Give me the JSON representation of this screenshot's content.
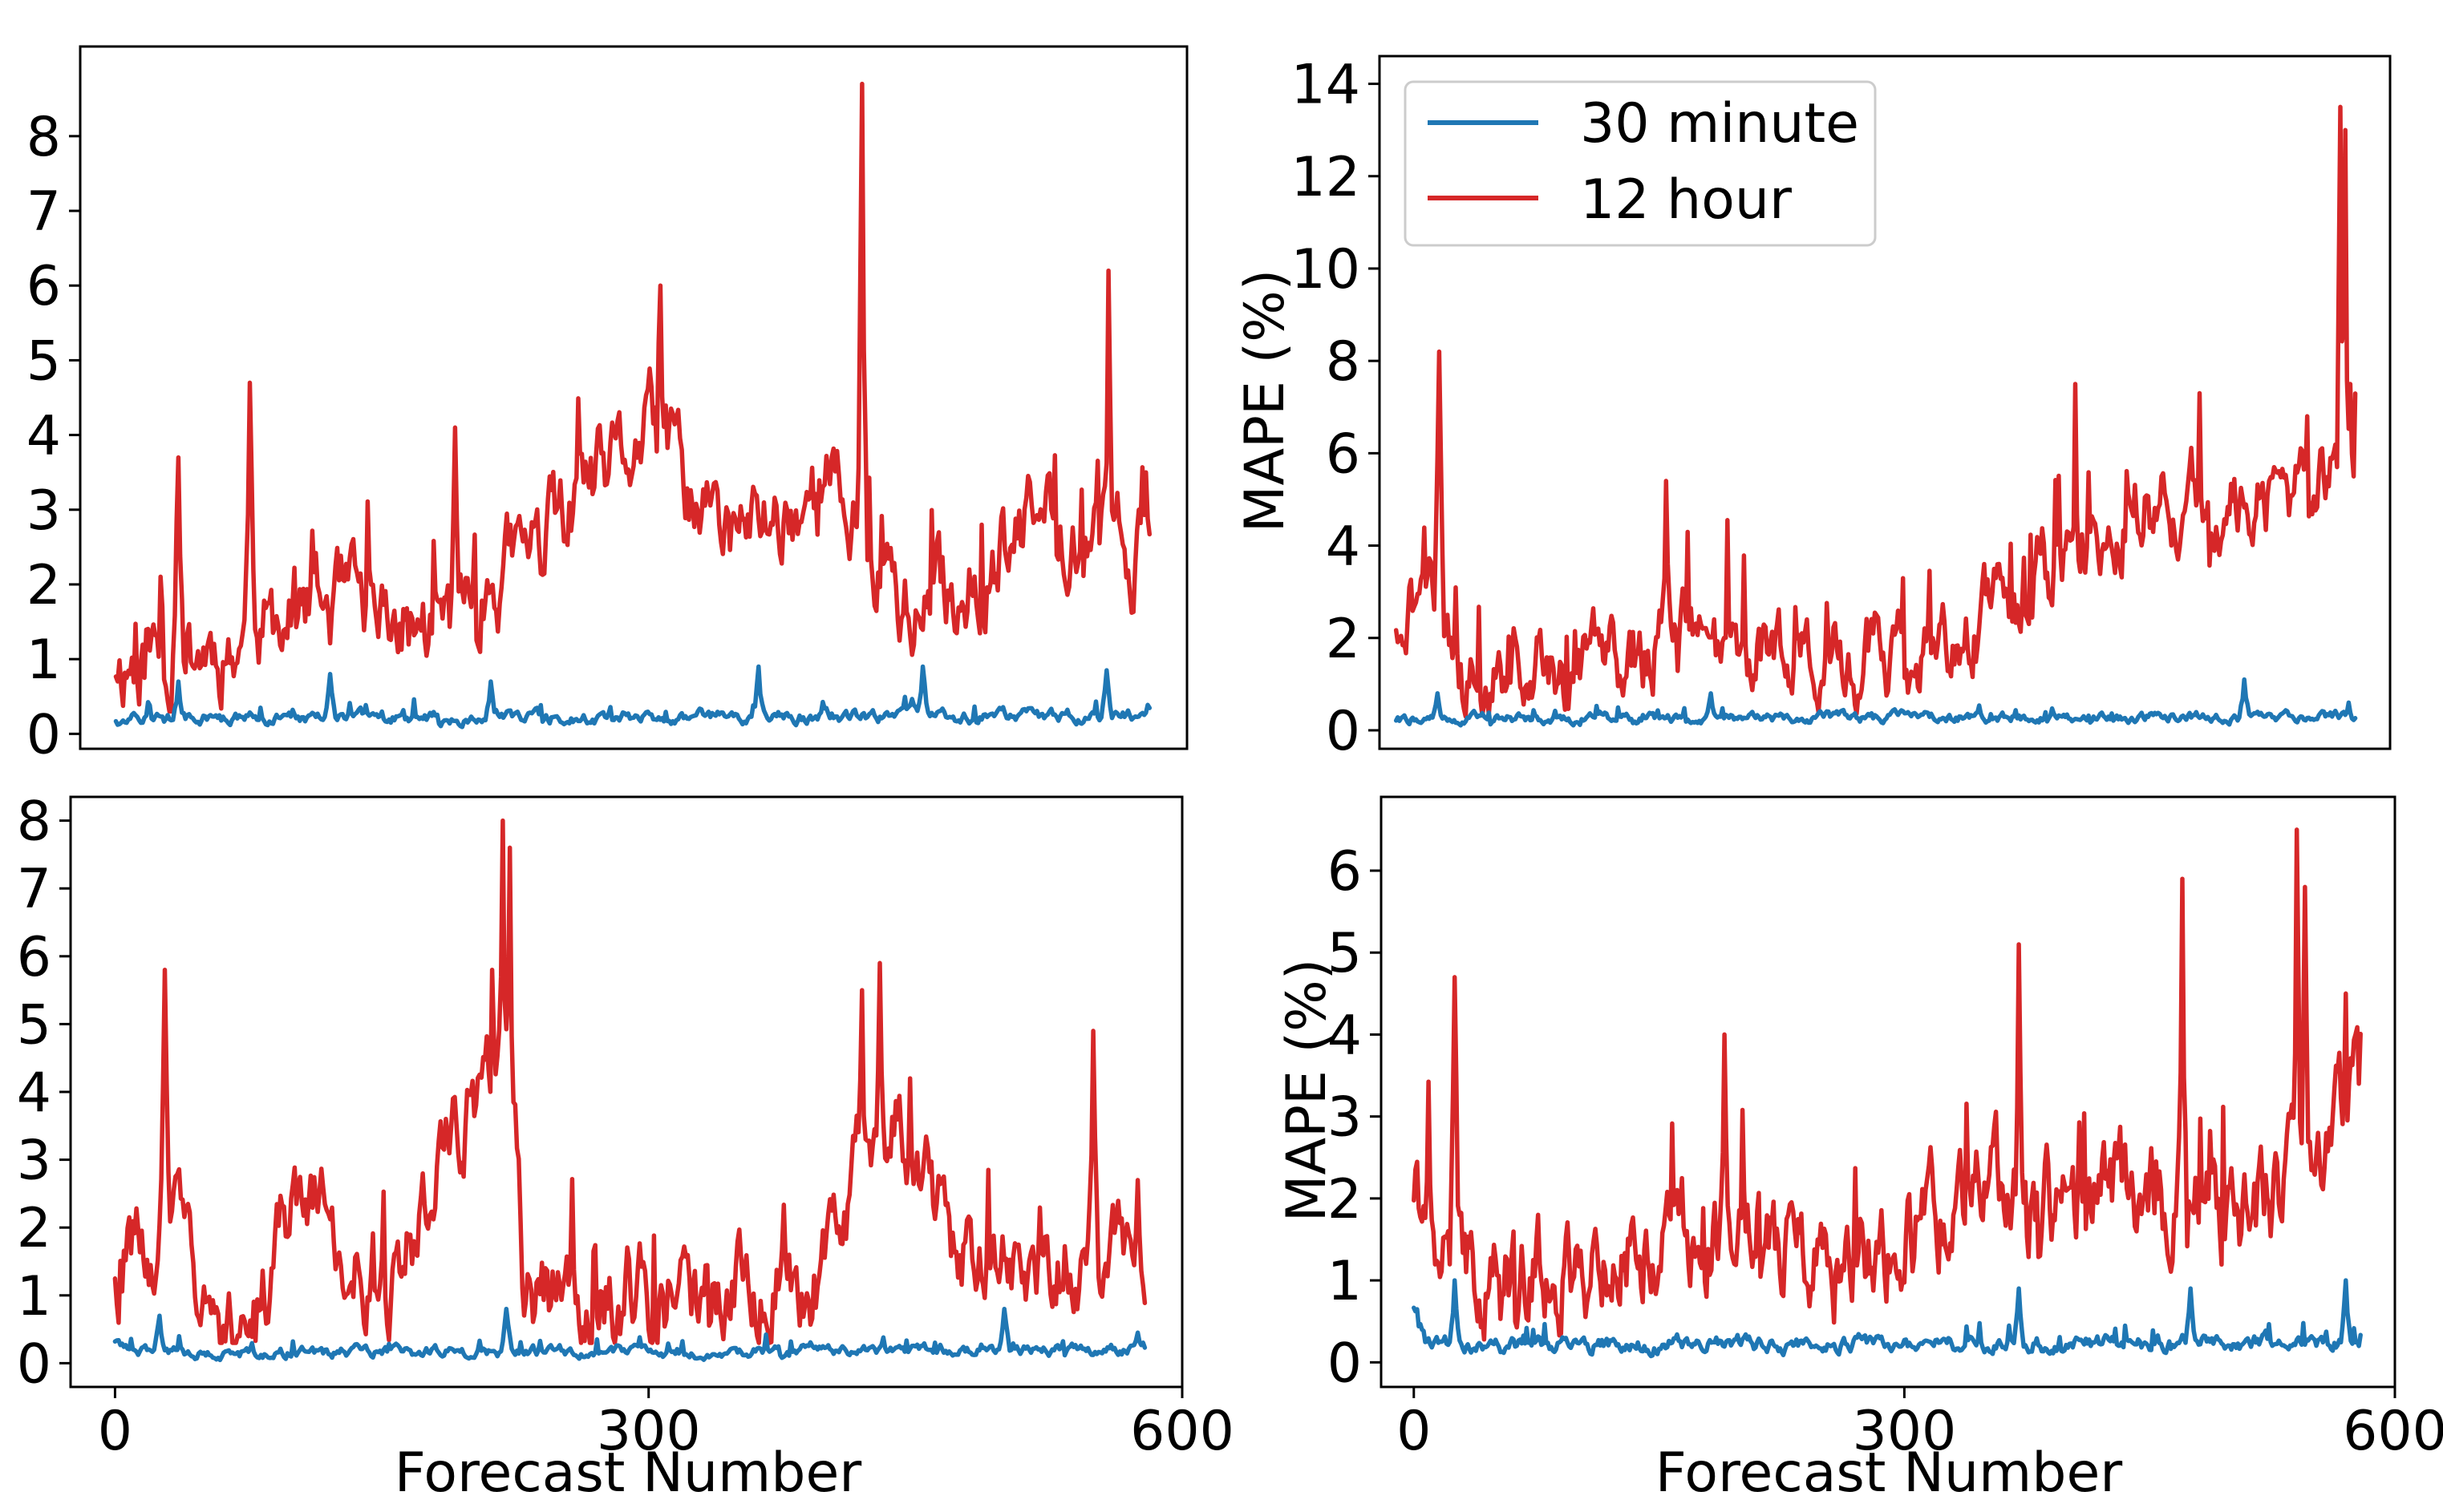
{
  "figure": {
    "colors": {
      "30 minute": "#1f77b4",
      "12 hour": "#d62728"
    },
    "legend": {
      "placement": "upper-left",
      "in_panel": 1,
      "entries": [
        "30 minute",
        "12 hour"
      ]
    }
  },
  "chart_data": [
    {
      "type": "line",
      "panel": "top-left",
      "title": "",
      "xlabel": "",
      "ylabel": "",
      "xlim": [
        -20,
        600
      ],
      "ylim": [
        -0.2,
        9.2
      ],
      "xticks": [],
      "yticks": [
        0,
        1,
        2,
        3,
        4,
        5,
        6,
        7,
        8
      ],
      "ytick_labels": [
        "0",
        "1",
        "2",
        "3",
        "4",
        "5",
        "6",
        "7",
        "8"
      ],
      "series": [
        {
          "name": "12 hour",
          "color": "#d62728",
          "n": 580,
          "seed": 11,
          "base": 0.9,
          "vol": 0.9,
          "trend": [
            [
              0,
              1.0
            ],
            [
              60,
              1.2
            ],
            [
              120,
              1.7
            ],
            [
              180,
              1.4
            ],
            [
              230,
              2.4
            ],
            [
              300,
              4.0
            ],
            [
              340,
              2.6
            ],
            [
              400,
              3.3
            ],
            [
              450,
              1.5
            ],
            [
              520,
              2.9
            ],
            [
              580,
              2.5
            ]
          ],
          "peaks": [
            [
              35,
              3.7
            ],
            [
              75,
              4.7
            ],
            [
              190,
              4.1
            ],
            [
              305,
              6.0
            ],
            [
              418,
              8.7
            ],
            [
              556,
              6.2
            ],
            [
              573,
              3.0
            ],
            [
              577,
              3.5
            ]
          ],
          "min": 0.3
        },
        {
          "name": "30 minute",
          "color": "#1f77b4",
          "n": 580,
          "seed": 12,
          "base": 0.22,
          "vol": 0.12,
          "trend": [
            [
              0,
              0.2
            ],
            [
              580,
              0.25
            ]
          ],
          "peaks": [
            [
              35,
              0.7
            ],
            [
              120,
              0.8
            ],
            [
              210,
              0.7
            ],
            [
              360,
              0.9
            ],
            [
              452,
              0.9
            ],
            [
              555,
              0.85
            ]
          ],
          "min": 0.02
        }
      ]
    },
    {
      "type": "line",
      "panel": "top-right",
      "title": "",
      "xlabel": "",
      "ylabel": "MAPE (%)",
      "xlim": [
        -10,
        600
      ],
      "ylim": [
        -0.4,
        14.6
      ],
      "xticks": [],
      "yticks": [
        0,
        2,
        4,
        6,
        8,
        10,
        12,
        14
      ],
      "ytick_labels": [
        "0",
        "2",
        "4",
        "6",
        "8",
        "10",
        "12",
        "14"
      ],
      "series": [
        {
          "name": "12 hour",
          "color": "#d62728",
          "n": 580,
          "seed": 21,
          "base": 1.5,
          "vol": 1.3,
          "trend": [
            [
              0,
              2.5
            ],
            [
              25,
              3.5
            ],
            [
              40,
              1.2
            ],
            [
              120,
              1.6
            ],
            [
              180,
              2.0
            ],
            [
              260,
              1.6
            ],
            [
              330,
              1.5
            ],
            [
              400,
              3.8
            ],
            [
              460,
              5.0
            ],
            [
              520,
              4.8
            ],
            [
              560,
              5.2
            ],
            [
              580,
              6.5
            ]
          ],
          "peaks": [
            [
              26,
              8.2
            ],
            [
              163,
              5.4
            ],
            [
              410,
              7.5
            ],
            [
              485,
              7.3
            ],
            [
              550,
              6.8
            ],
            [
              570,
              13.5
            ],
            [
              573,
              13.0
            ],
            [
              576,
              7.5
            ],
            [
              578,
              5.5
            ]
          ],
          "min": 0.3
        },
        {
          "name": "30 minute",
          "color": "#1f77b4",
          "n": 580,
          "seed": 22,
          "base": 0.25,
          "vol": 0.15,
          "trend": [
            [
              0,
              0.25
            ],
            [
              580,
              0.3
            ]
          ],
          "peaks": [
            [
              25,
              0.8
            ],
            [
              190,
              0.8
            ],
            [
              512,
              1.1
            ],
            [
              575,
              0.6
            ]
          ],
          "min": 0.02
        }
      ]
    },
    {
      "type": "line",
      "panel": "bottom-left",
      "title": "",
      "xlabel": "Forecast Number",
      "ylabel": "",
      "xlim": [
        -25,
        600
      ],
      "ylim": [
        -0.35,
        8.35
      ],
      "xticks": [
        0,
        300,
        600
      ],
      "xtick_labels": [
        "0",
        "300",
        "600"
      ],
      "yticks": [
        0,
        1,
        2,
        3,
        4,
        5,
        6,
        7,
        8
      ],
      "ytick_labels": [
        "0",
        "1",
        "2",
        "3",
        "4",
        "5",
        "6",
        "7",
        "8"
      ],
      "series": [
        {
          "name": "12 hour",
          "color": "#d62728",
          "n": 580,
          "seed": 31,
          "base": 1.0,
          "vol": 1.0,
          "trend": [
            [
              0,
              1.5
            ],
            [
              20,
              1.6
            ],
            [
              30,
              2.5
            ],
            [
              45,
              0.8
            ],
            [
              80,
              1.0
            ],
            [
              110,
              2.8
            ],
            [
              130,
              1.6
            ],
            [
              160,
              1.2
            ],
            [
              180,
              3.0
            ],
            [
              210,
              4.0
            ],
            [
              222,
              4.5
            ],
            [
              230,
              1.0
            ],
            [
              300,
              1.0
            ],
            [
              400,
              1.3
            ],
            [
              420,
              3.2
            ],
            [
              440,
              3.6
            ],
            [
              470,
              1.8
            ],
            [
              580,
              1.5
            ]
          ],
          "peaks": [
            [
              28,
              5.8
            ],
            [
              212,
              5.8
            ],
            [
              218,
              8.0
            ],
            [
              222,
              7.6
            ],
            [
              420,
              5.5
            ],
            [
              430,
              5.9
            ],
            [
              550,
              4.9
            ],
            [
              575,
              2.7
            ]
          ],
          "min": 0.3
        },
        {
          "name": "30 minute",
          "color": "#1f77b4",
          "n": 580,
          "seed": 32,
          "base": 0.2,
          "vol": 0.12,
          "trend": [
            [
              0,
              0.35
            ],
            [
              10,
              0.15
            ],
            [
              580,
              0.2
            ]
          ],
          "peaks": [
            [
              25,
              0.7
            ],
            [
              220,
              0.8
            ],
            [
              500,
              0.8
            ],
            [
              575,
              0.45
            ]
          ],
          "min": 0.02
        }
      ]
    },
    {
      "type": "line",
      "panel": "bottom-right",
      "title": "",
      "xlabel": "Forecast Number",
      "ylabel": "MAPE (%)",
      "xlim": [
        -20,
        600
      ],
      "ylim": [
        -0.3,
        6.9
      ],
      "xticks": [
        0,
        300,
        600
      ],
      "xtick_labels": [
        "0",
        "300",
        "600"
      ],
      "yticks": [
        0,
        1,
        2,
        3,
        4,
        5,
        6
      ],
      "ytick_labels": [
        "0",
        "1",
        "2",
        "3",
        "4",
        "5",
        "6"
      ],
      "series": [
        {
          "name": "12 hour",
          "color": "#d62728",
          "n": 580,
          "seed": 41,
          "base": 1.4,
          "vol": 0.9,
          "trend": [
            [
              0,
              2.2
            ],
            [
              20,
              1.4
            ],
            [
              60,
              1.0
            ],
            [
              120,
              1.3
            ],
            [
              200,
              1.9
            ],
            [
              250,
              1.0
            ],
            [
              320,
              1.8
            ],
            [
              380,
              2.0
            ],
            [
              450,
              2.1
            ],
            [
              500,
              1.6
            ],
            [
              540,
              2.4
            ],
            [
              580,
              3.2
            ]
          ],
          "peaks": [
            [
              25,
              4.7
            ],
            [
              190,
              4.0
            ],
            [
              370,
              5.1
            ],
            [
              470,
              5.9
            ],
            [
              540,
              6.5
            ],
            [
              545,
              5.8
            ],
            [
              570,
              4.5
            ],
            [
              578,
              3.4
            ]
          ],
          "min": 0.2
        },
        {
          "name": "30 minute",
          "color": "#1f77b4",
          "n": 580,
          "seed": 42,
          "base": 0.25,
          "vol": 0.14,
          "trend": [
            [
              0,
              0.7
            ],
            [
              8,
              0.2
            ],
            [
              580,
              0.25
            ]
          ],
          "peaks": [
            [
              25,
              1.0
            ],
            [
              370,
              0.9
            ],
            [
              475,
              0.9
            ],
            [
              570,
              1.0
            ],
            [
              578,
              0.2
            ]
          ],
          "min": 0.02
        }
      ]
    }
  ]
}
